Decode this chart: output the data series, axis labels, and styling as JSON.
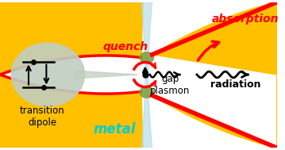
{
  "bg_color": "#ffffff",
  "gold_color": "#FFC000",
  "red_color": "#FF0000",
  "light_blue_color": "#ADD8E6",
  "olive_color": "#7B9E3A",
  "gray_circle_color": "#C0CEC0",
  "metal_color": "#00CED1",
  "text_quench": "quench",
  "text_absorption": "absorption",
  "text_gap_plasmon": "gap\nplasmon",
  "text_radiation": "radiation",
  "text_transition": "transition\ndipole",
  "text_metal": "metal",
  "fig_width": 3.59,
  "fig_height": 1.89,
  "dpi": 100
}
